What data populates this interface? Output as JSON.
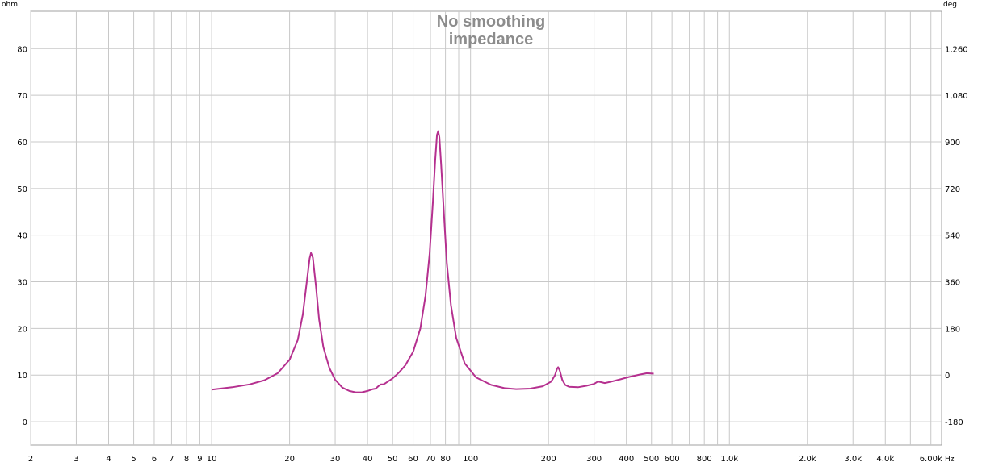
{
  "chart_data": {
    "type": "line",
    "title": "No smoothing",
    "subtitle": "impedance",
    "x_scale": "log",
    "xlim": [
      2,
      6600
    ],
    "x_unit": "Hz",
    "x_ticks": [
      {
        "v": 2,
        "label": "2"
      },
      {
        "v": 3,
        "label": "3"
      },
      {
        "v": 4,
        "label": "4"
      },
      {
        "v": 5,
        "label": "5"
      },
      {
        "v": 6,
        "label": "6"
      },
      {
        "v": 7,
        "label": "7"
      },
      {
        "v": 8,
        "label": "8"
      },
      {
        "v": 9,
        "label": "9"
      },
      {
        "v": 10,
        "label": "10"
      },
      {
        "v": 20,
        "label": "20"
      },
      {
        "v": 30,
        "label": "30"
      },
      {
        "v": 40,
        "label": "40"
      },
      {
        "v": 50,
        "label": "50"
      },
      {
        "v": 60,
        "label": "60"
      },
      {
        "v": 70,
        "label": "70"
      },
      {
        "v": 80,
        "label": "80"
      },
      {
        "v": 100,
        "label": "100"
      },
      {
        "v": 200,
        "label": "200"
      },
      {
        "v": 300,
        "label": "300"
      },
      {
        "v": 400,
        "label": "400"
      },
      {
        "v": 500,
        "label": "500"
      },
      {
        "v": 600,
        "label": "600"
      },
      {
        "v": 800,
        "label": "800"
      },
      {
        "v": 1000,
        "label": "1.0k"
      },
      {
        "v": 2000,
        "label": "2.0k"
      },
      {
        "v": 3000,
        "label": "3.0k"
      },
      {
        "v": 4000,
        "label": "4.0k"
      },
      {
        "v": 6000,
        "label": "6.00k"
      }
    ],
    "x_minor_gridlines": [
      90,
      700,
      900,
      5000
    ],
    "y_left_label": "ohm",
    "ylim": [
      -5,
      88
    ],
    "y_ticks": [
      0,
      10,
      20,
      30,
      40,
      50,
      60,
      70,
      80
    ],
    "y_right_label": "deg",
    "y_right_lim": [
      -270,
      1404
    ],
    "y_right_ticks": [
      {
        "v": -180,
        "label": "-180"
      },
      {
        "v": 0,
        "label": "0"
      },
      {
        "v": 180,
        "label": "180"
      },
      {
        "v": 360,
        "label": "360"
      },
      {
        "v": 540,
        "label": "540"
      },
      {
        "v": 720,
        "label": "720"
      },
      {
        "v": 900,
        "label": "900"
      },
      {
        "v": 1080,
        "label": "1,080"
      },
      {
        "v": 1260,
        "label": "1,260"
      }
    ],
    "grid": true,
    "series": [
      {
        "color": "#b5308f",
        "points": [
          [
            10,
            6.9
          ],
          [
            12,
            7.4
          ],
          [
            14,
            8.0
          ],
          [
            16,
            8.9
          ],
          [
            18,
            10.4
          ],
          [
            20,
            13.3
          ],
          [
            21.5,
            17.5
          ],
          [
            22.5,
            23.0
          ],
          [
            23.3,
            30.0
          ],
          [
            23.9,
            35.0
          ],
          [
            24.2,
            36.2
          ],
          [
            24.6,
            35.2
          ],
          [
            25.3,
            29.0
          ],
          [
            26.0,
            22.0
          ],
          [
            27.0,
            16.0
          ],
          [
            28.5,
            11.5
          ],
          [
            30,
            9.0
          ],
          [
            32,
            7.3
          ],
          [
            34,
            6.6
          ],
          [
            36,
            6.3
          ],
          [
            38,
            6.3
          ],
          [
            40,
            6.6
          ],
          [
            42,
            7.0
          ],
          [
            43,
            7.1
          ],
          [
            44,
            7.6
          ],
          [
            45,
            8.0
          ],
          [
            46,
            8.0
          ],
          [
            47,
            8.3
          ],
          [
            50,
            9.3
          ],
          [
            53,
            10.6
          ],
          [
            56,
            12.1
          ],
          [
            60,
            15.0
          ],
          [
            64,
            20.0
          ],
          [
            67,
            27.0
          ],
          [
            69.5,
            36.0
          ],
          [
            71.5,
            47.0
          ],
          [
            73,
            56.0
          ],
          [
            74.2,
            61.5
          ],
          [
            75,
            62.3
          ],
          [
            75.8,
            61.0
          ],
          [
            77,
            55.0
          ],
          [
            79,
            44.0
          ],
          [
            81,
            34.0
          ],
          [
            84,
            25.0
          ],
          [
            88,
            18.0
          ],
          [
            95,
            12.5
          ],
          [
            105,
            9.5
          ],
          [
            120,
            7.9
          ],
          [
            135,
            7.2
          ],
          [
            150,
            7.0
          ],
          [
            170,
            7.1
          ],
          [
            190,
            7.6
          ],
          [
            205,
            8.6
          ],
          [
            212,
            10.0
          ],
          [
            216,
            11.4
          ],
          [
            218,
            11.7
          ],
          [
            221,
            11.0
          ],
          [
            226,
            9.0
          ],
          [
            232,
            7.9
          ],
          [
            240,
            7.5
          ],
          [
            260,
            7.4
          ],
          [
            280,
            7.7
          ],
          [
            300,
            8.1
          ],
          [
            310,
            8.6
          ],
          [
            318,
            8.5
          ],
          [
            330,
            8.3
          ],
          [
            350,
            8.6
          ],
          [
            380,
            9.1
          ],
          [
            410,
            9.6
          ],
          [
            450,
            10.1
          ],
          [
            480,
            10.4
          ],
          [
            510,
            10.3
          ]
        ]
      }
    ]
  }
}
